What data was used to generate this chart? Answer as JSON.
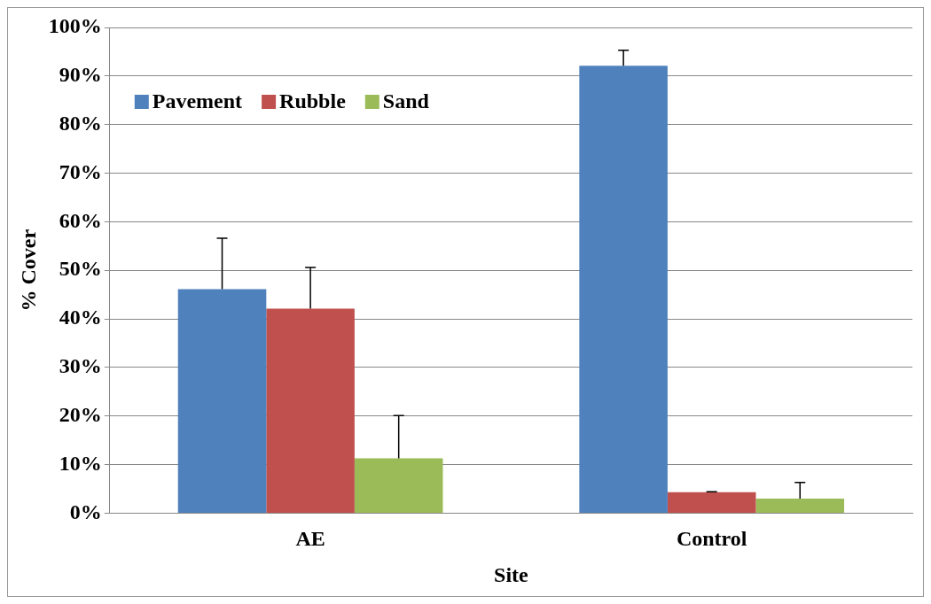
{
  "chart_data": {
    "type": "bar",
    "xlabel": "Site",
    "ylabel": "% Cover",
    "categories": [
      "AE",
      "Control"
    ],
    "series": [
      {
        "name": "Pavement",
        "color": "#4f81bd",
        "values": [
          46.1,
          92.1
        ],
        "errors": [
          [
            46.1,
            56.6
          ],
          [
            92.1,
            95.3
          ]
        ]
      },
      {
        "name": "Rubble",
        "color": "#c0504d",
        "values": [
          42.1,
          4.3
        ],
        "errors": [
          [
            42.1,
            50.6
          ],
          [
            4.3,
            4.4
          ]
        ]
      },
      {
        "name": "Sand",
        "color": "#9bbb59",
        "values": [
          11.3,
          3.0
        ],
        "errors": [
          [
            11.3,
            20.1
          ],
          [
            3.0,
            6.3
          ]
        ]
      }
    ],
    "ylim": [
      0,
      100
    ],
    "yticks": [
      {
        "value": 0,
        "label": "0%"
      },
      {
        "value": 10,
        "label": "10%"
      },
      {
        "value": 20,
        "label": "20%"
      },
      {
        "value": 30,
        "label": "30%"
      },
      {
        "value": 40,
        "label": "40%"
      },
      {
        "value": 50,
        "label": "50%"
      },
      {
        "value": 60,
        "label": "60%"
      },
      {
        "value": 70,
        "label": "70%"
      },
      {
        "value": 80,
        "label": "80%"
      },
      {
        "value": 90,
        "label": "90%"
      },
      {
        "value": 100,
        "label": "100%"
      }
    ],
    "grid": "y",
    "legend": "top left"
  }
}
